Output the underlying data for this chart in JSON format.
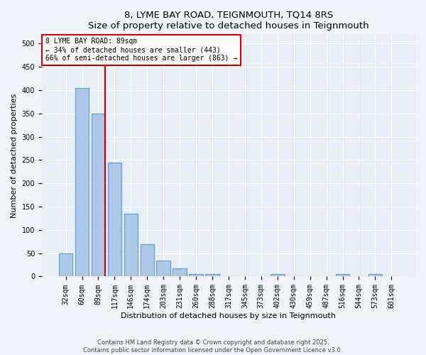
{
  "title": "8, LYME BAY ROAD, TEIGNMOUTH, TQ14 8RS",
  "subtitle": "Size of property relative to detached houses in Teignmouth",
  "xlabel": "Distribution of detached houses by size in Teignmouth",
  "ylabel": "Number of detached properties",
  "categories": [
    "32sqm",
    "60sqm",
    "89sqm",
    "117sqm",
    "146sqm",
    "174sqm",
    "203sqm",
    "231sqm",
    "260sqm",
    "288sqm",
    "317sqm",
    "345sqm",
    "373sqm",
    "402sqm",
    "430sqm",
    "459sqm",
    "487sqm",
    "516sqm",
    "544sqm",
    "573sqm",
    "601sqm"
  ],
  "values": [
    50,
    405,
    350,
    245,
    135,
    70,
    35,
    18,
    5,
    5,
    0,
    0,
    0,
    5,
    0,
    0,
    0,
    5,
    0,
    5,
    0
  ],
  "bar_color": "#aec6e8",
  "bar_edge_color": "#5a9fd4",
  "reference_line_index": 2,
  "reference_line_color": "#cc0000",
  "annotation_text": "8 LYME BAY ROAD: 89sqm\n← 34% of detached houses are smaller (443)\n66% of semi-detached houses are larger (863) →",
  "annotation_box_color": "#ffffff",
  "annotation_box_edge_color": "#cc0000",
  "ylim_max": 520,
  "yticks": [
    0,
    50,
    100,
    150,
    200,
    250,
    300,
    350,
    400,
    450,
    500
  ],
  "bg_color": "#e8eef5",
  "fig_bg_color": "#f0f4f8",
  "footer_line1": "Contains HM Land Registry data © Crown copyright and database right 2025.",
  "footer_line2": "Contains public sector information licensed under the Open Government Licence v3.0.",
  "title_fontsize": 9.5,
  "axis_label_fontsize": 8,
  "tick_fontsize": 7,
  "footer_fontsize": 6
}
